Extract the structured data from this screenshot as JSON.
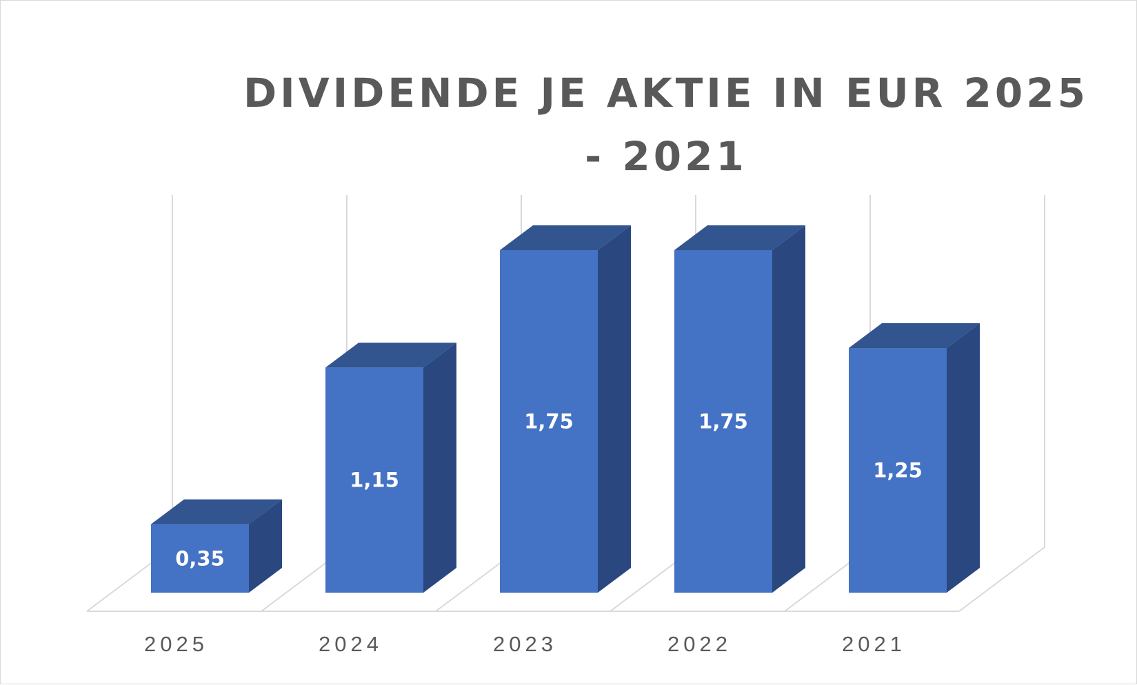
{
  "chart_data": {
    "type": "bar",
    "title": "DIVIDENDE JE AKTIE IN EUR 2025 - 2021",
    "categories": [
      "2025",
      "2024",
      "2023",
      "2022",
      "2021"
    ],
    "values": [
      0.35,
      1.15,
      1.75,
      1.75,
      1.25
    ],
    "data_labels": [
      "0,35",
      "1,15",
      "1,75",
      "1,75",
      "1,25"
    ],
    "xlabel": "",
    "ylabel": "",
    "ylim": [
      0,
      2
    ],
    "style": "3d-column",
    "grid": true,
    "legend": "none",
    "colors": {
      "front": "#4472c4",
      "top": "#32548f",
      "side": "#2a4780",
      "grid": "#d9d9d9",
      "text": "#595959"
    }
  }
}
